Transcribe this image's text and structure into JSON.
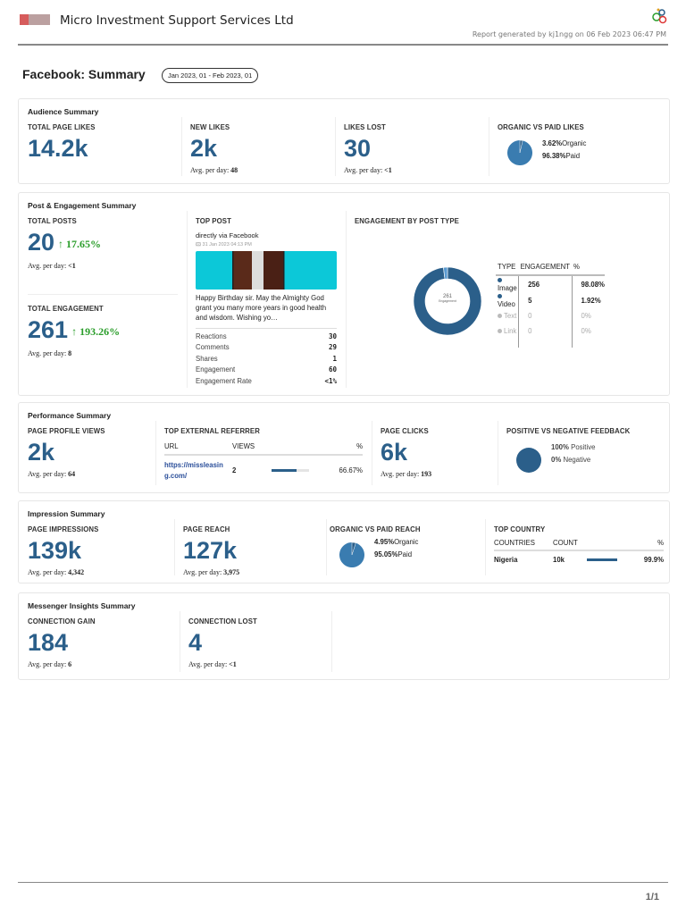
{
  "header": {
    "company": "Micro Investment Support Services Ltd",
    "generated": "Report generated by kj1ngg on 06 Feb 2023 06:47 PM"
  },
  "page": {
    "title": "Facebook: Summary",
    "date_range": "Jan 2023, 01 - Feb 2023, 01",
    "page_number": "1/1"
  },
  "colors": {
    "accent": "#2b5f8a",
    "growth": "#2a9d2a"
  },
  "audience": {
    "title": "Audience Summary",
    "total_likes": {
      "label": "TOTAL PAGE LIKES",
      "value": "14.2k"
    },
    "new_likes": {
      "label": "NEW LIKES",
      "value": "2k",
      "avg_label": "Avg. per day:",
      "avg": "48"
    },
    "likes_lost": {
      "label": "LIKES LOST",
      "value": "30",
      "avg_label": "Avg. per day:",
      "avg": "<1"
    },
    "organic_paid": {
      "label": "ORGANIC VS PAID LIKES",
      "organic_pct": "3.62%",
      "organic_label": "Organic",
      "paid_pct": "96.38%",
      "paid_label": "Paid",
      "organic": 3.62,
      "paid": 96.38
    }
  },
  "post": {
    "title": "Post & Engagement Summary",
    "total_posts": {
      "label": "TOTAL POSTS",
      "value": "20",
      "growth": "17.65%",
      "avg_label": "Avg. per day:",
      "avg": "<1"
    },
    "total_engagement": {
      "label": "TOTAL ENGAGEMENT",
      "value": "261",
      "growth": "193.26%",
      "avg_label": "Avg. per day:",
      "avg": "8"
    },
    "top_post": {
      "label": "TOP POST",
      "source": "directly via Facebook",
      "date": "31 Jan 2023 04:13 PM",
      "text": "Happy Birthday sir. May the Almighty God grant you many more years in good health and wisdom. Wishing yo…",
      "stats": [
        {
          "k": "Reactions",
          "v": "30"
        },
        {
          "k": "Comments",
          "v": "29"
        },
        {
          "k": "Shares",
          "v": "1"
        },
        {
          "k": "Engagement",
          "v": "60"
        },
        {
          "k": "Engagement Rate",
          "v": "<1%"
        }
      ]
    },
    "by_type": {
      "label": "ENGAGEMENT BY POST TYPE",
      "center_value": "261",
      "center_label": "Engagement",
      "headers": [
        "TYPE",
        "ENGAGEMENT",
        "%"
      ],
      "rows": [
        {
          "type": "Image",
          "eng": "256",
          "pct": "98.08%",
          "active": true
        },
        {
          "type": "Video",
          "eng": "5",
          "pct": "1.92%",
          "active": true
        },
        {
          "type": "Text",
          "eng": "0",
          "pct": "0%",
          "active": false
        },
        {
          "type": "Link",
          "eng": "0",
          "pct": "0%",
          "active": false
        }
      ]
    }
  },
  "performance": {
    "title": "Performance Summary",
    "profile_views": {
      "label": "PAGE PROFILE VIEWS",
      "value": "2k",
      "avg_label": "Avg. per day:",
      "avg": "64"
    },
    "referrer": {
      "label": "TOP EXTERNAL REFERRER",
      "headers": [
        "URL",
        "VIEWS",
        "%"
      ],
      "rows": [
        {
          "url": "https://missleasing.com/",
          "views": "2",
          "pct": "66.67%",
          "fraction": 0.6667
        }
      ]
    },
    "page_clicks": {
      "label": "PAGE CLICKS",
      "value": "6k",
      "avg_label": "Avg. per day:",
      "avg": "193"
    },
    "feedback": {
      "label": "POSITIVE VS NEGATIVE FEEDBACK",
      "pos_pct": "100%",
      "pos_label": "Positive",
      "neg_pct": "0%",
      "neg_label": "Negative",
      "positive": 100,
      "negative": 0
    }
  },
  "impression": {
    "title": "Impression Summary",
    "impressions": {
      "label": "PAGE IMPRESSIONS",
      "value": "139k",
      "avg_label": "Avg. per day:",
      "avg": "4,342"
    },
    "reach": {
      "label": "PAGE REACH",
      "value": "127k",
      "avg_label": "Avg. per day:",
      "avg": "3,975"
    },
    "organic_paid": {
      "label": "ORGANIC VS PAID REACH",
      "organic_pct": "4.95%",
      "organic_label": "Organic",
      "paid_pct": "95.05%",
      "paid_label": "Paid",
      "organic": 4.95,
      "paid": 95.05
    },
    "country": {
      "label": "TOP COUNTRY",
      "headers": [
        "COUNTRIES",
        "COUNT",
        "%"
      ],
      "rows": [
        {
          "name": "Nigeria",
          "count": "10k",
          "pct": "99.9%",
          "fraction": 0.999
        }
      ]
    }
  },
  "messenger": {
    "title": "Messenger Insights Summary",
    "gain": {
      "label": "CONNECTION GAIN",
      "value": "184",
      "avg_label": "Avg. per day:",
      "avg": "6"
    },
    "lost": {
      "label": "CONNECTION LOST",
      "value": "4",
      "avg_label": "Avg. per day:",
      "avg": "<1"
    }
  }
}
